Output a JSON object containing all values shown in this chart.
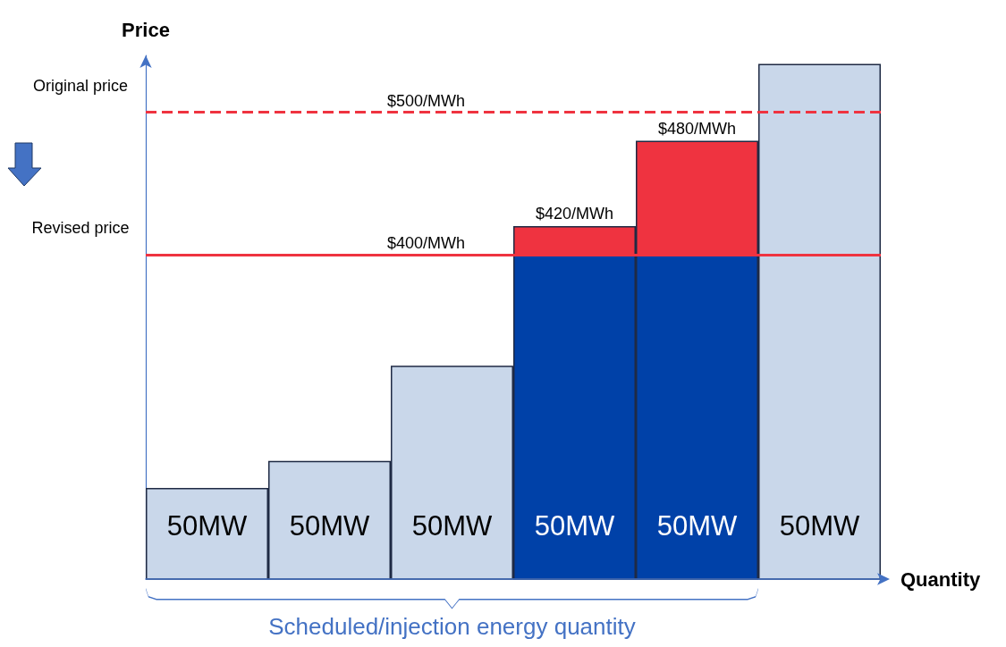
{
  "chart_data": {
    "type": "bar",
    "xlabel": "Quantity",
    "ylabel": "Price",
    "categories": [
      "50MW",
      "50MW",
      "50MW",
      "50MW",
      "50MW",
      "50MW"
    ],
    "ylim": [
      172,
      540
    ],
    "series": [
      {
        "colors": [
          "#c9d7ea",
          "#c9d7ea",
          "#c9d7ea",
          "#0041a8",
          "#0041a8",
          "#c9d7ea"
        ],
        "values": [
          236,
          255,
          322,
          400,
          400,
          534
        ]
      },
      {
        "color": "#ef3340",
        "values": [
          null,
          null,
          null,
          420,
          480,
          null
        ],
        "value_labels": [
          null,
          null,
          null,
          "$420/MWh",
          "$480/MWh",
          null
        ]
      }
    ],
    "ref_lines": [
      {
        "axis": "y",
        "value": 500,
        "label": "$500/MWh",
        "color": "#ef3340",
        "line_style": "dashed"
      },
      {
        "axis": "y",
        "value": 400,
        "label": "$400/MWh",
        "color": "#ef3340",
        "line_style": "solid"
      }
    ],
    "annotations": [
      "Original price",
      "Revised price",
      "Scheduled/injection energy quantity"
    ],
    "grid": false
  }
}
